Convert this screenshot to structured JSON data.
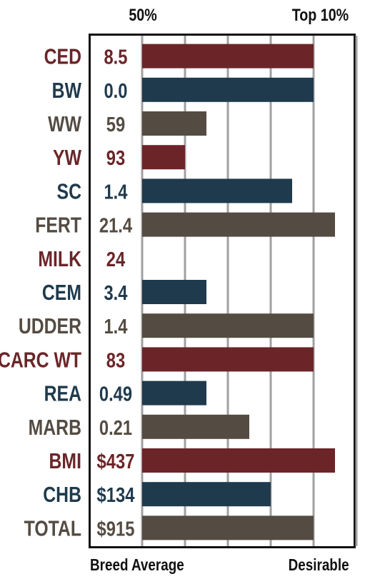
{
  "header": {
    "left_label": "50%",
    "right_label": "Top 10%"
  },
  "footer": {
    "left_label": "Breed Average",
    "right_label": "Desirable"
  },
  "colors": {
    "red": "#6b2528",
    "blue": "#1f3a4d",
    "gray": "#544b42",
    "grid": "#a0a0a0",
    "frame": "#111111"
  },
  "chart_data": {
    "type": "bar",
    "orientation": "horizontal",
    "categories": [
      "CED",
      "BW",
      "WW",
      "YW",
      "SC",
      "FERT",
      "MILK",
      "CEM",
      "UDDER",
      "CARC WT",
      "REA",
      "MARB",
      "BMI",
      "CHB",
      "TOTAL"
    ],
    "value_labels": [
      "8.5",
      "0.0",
      "59",
      "93",
      "1.4",
      "21.4",
      "24",
      "3.4",
      "1.4",
      "83",
      "0.49",
      "0.21",
      "$437",
      "$134",
      "$915"
    ],
    "values": [
      4,
      4,
      1.5,
      1,
      3.5,
      4.5,
      0,
      1.5,
      4,
      4,
      1.5,
      2.5,
      4.5,
      3,
      4
    ],
    "color_groups": [
      "red",
      "blue",
      "gray",
      "red",
      "blue",
      "gray",
      "red",
      "blue",
      "gray",
      "red",
      "blue",
      "gray",
      "red",
      "blue",
      "gray"
    ],
    "xlim": [
      0,
      5
    ],
    "grid": true
  }
}
